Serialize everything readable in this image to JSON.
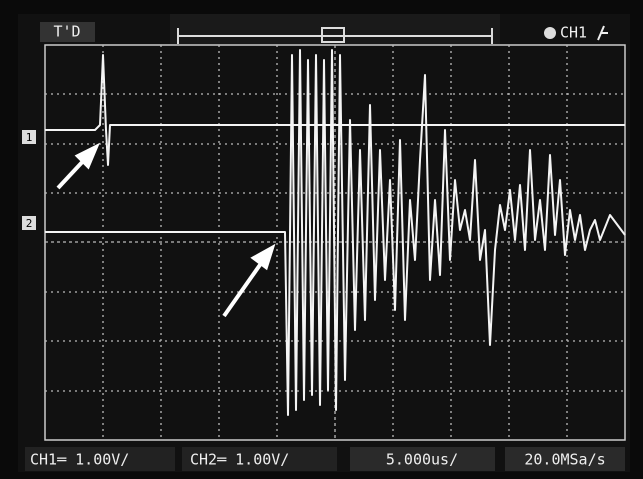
{
  "top_bar": {
    "trigger_status": "T'D",
    "channel": "CH1"
  },
  "markers": {
    "ch1": "1",
    "ch2": "2"
  },
  "bottom_bar": {
    "ch1_scale": "CH1═ 1.00V/",
    "ch2_scale": "CH2═ 1.00V/",
    "timebase": "5.000us/",
    "sample_rate": "20.0MSa/s"
  }
}
